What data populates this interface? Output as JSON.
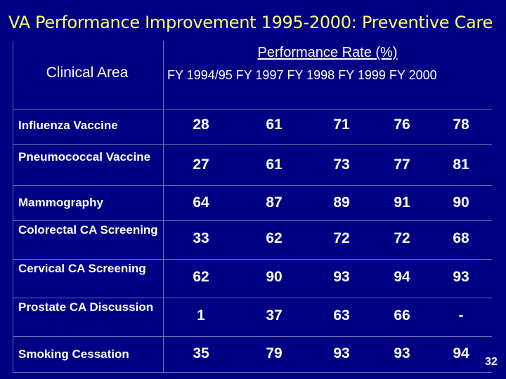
{
  "slide": {
    "title": "VA Performance Improvement 1995-2000:  Preventive Care",
    "page_number": "32",
    "colors": {
      "background": "#000085",
      "title": "#ffff66",
      "text": "#ffffff"
    }
  },
  "table": {
    "area_header": "Clinical Area",
    "perf_header": "Performance Rate (%)",
    "years_header": "FY 1994/95 FY 1997  FY 1998 FY 1999 FY 2000",
    "rows": [
      {
        "area": "Influenza Vaccine",
        "values": [
          "28",
          "61",
          "71",
          "76",
          "78"
        ]
      },
      {
        "area": "Pneumococcal Vaccine",
        "values": [
          "27",
          "61",
          "73",
          "77",
          "81"
        ]
      },
      {
        "area": "Mammography",
        "values": [
          "64",
          "87",
          "89",
          "91",
          "90"
        ]
      },
      {
        "area": "Colorectal CA Screening",
        "values": [
          "33",
          "62",
          "72",
          "72",
          "68"
        ]
      },
      {
        "area": "Cervical CA Screening",
        "values": [
          "62",
          "90",
          "93",
          "94",
          "93"
        ]
      },
      {
        "area": "Prostate CA Discussion",
        "values": [
          "1",
          "37",
          "63",
          "66",
          "-"
        ]
      },
      {
        "area": "Smoking Cessation",
        "values": [
          "35",
          "79",
          "93",
          "93",
          "94"
        ]
      }
    ]
  }
}
